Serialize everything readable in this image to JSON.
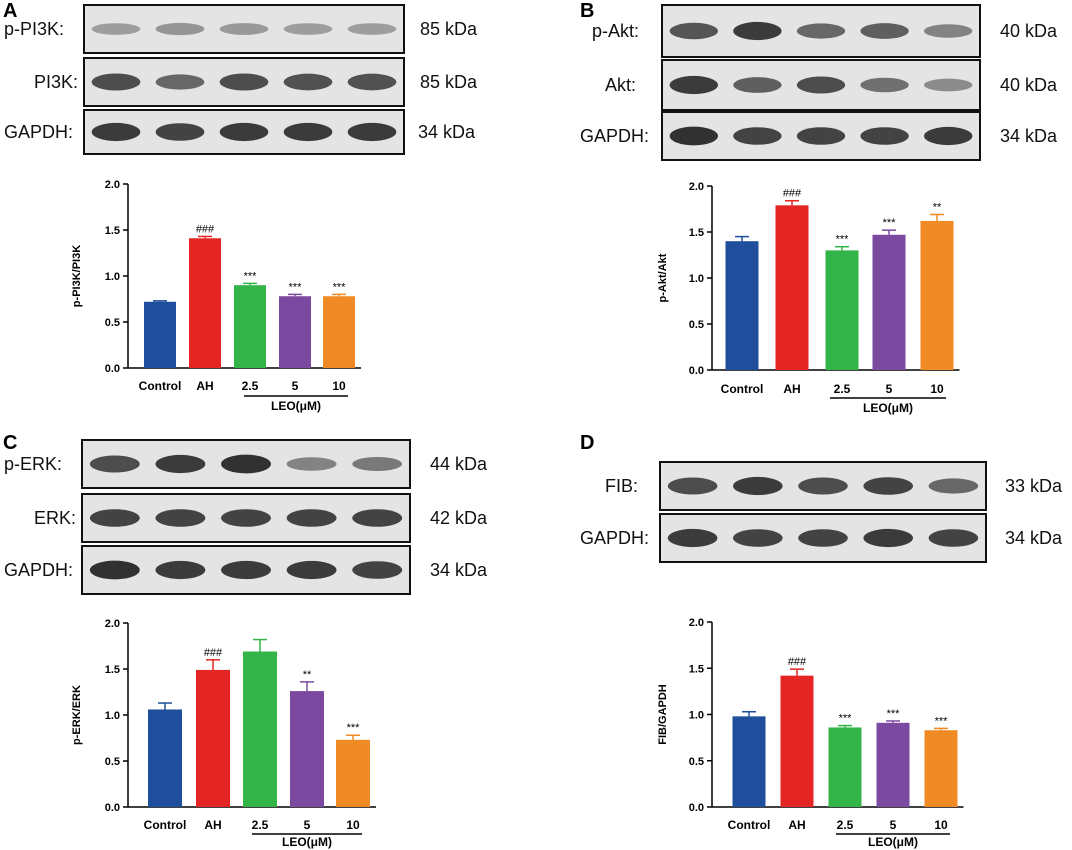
{
  "colors": {
    "control": "#1f4e9c",
    "ah": "#e32623",
    "leo_2_5": "#33b449",
    "leo_5": "#7b4aa0",
    "leo_10": "#f08a24"
  },
  "panels": [
    {
      "letter": "A",
      "blots": [
        {
          "label": "p-PI3K:",
          "kda": "85 kDa",
          "intensity": [
            0.3,
            0.35,
            0.32,
            0.3,
            0.3
          ]
        },
        {
          "label": "PI3K:",
          "kda": "85 kDa",
          "intensity": [
            0.75,
            0.6,
            0.75,
            0.72,
            0.72
          ]
        },
        {
          "label": "GAPDH:",
          "kda": "34 kDa",
          "intensity": [
            0.85,
            0.8,
            0.85,
            0.85,
            0.85
          ]
        }
      ]
    },
    {
      "letter": "B",
      "blots": [
        {
          "label": "p-Akt:",
          "kda": "40 kDa",
          "intensity": [
            0.7,
            0.85,
            0.6,
            0.65,
            0.45
          ]
        },
        {
          "label": "Akt:",
          "kda": "40 kDa",
          "intensity": [
            0.85,
            0.65,
            0.75,
            0.55,
            0.4
          ]
        },
        {
          "label": "GAPDH:",
          "kda": "34 kDa",
          "intensity": [
            0.9,
            0.8,
            0.8,
            0.8,
            0.85
          ]
        }
      ]
    },
    {
      "letter": "C",
      "blots": [
        {
          "label": "p-ERK:",
          "kda": "44 kDa",
          "intensity": [
            0.75,
            0.85,
            0.9,
            0.45,
            0.5
          ]
        },
        {
          "label": "ERK:",
          "kda": "42 kDa",
          "intensity": [
            0.8,
            0.8,
            0.8,
            0.8,
            0.8
          ]
        },
        {
          "label": "GAPDH:",
          "kda": "34 kDa",
          "intensity": [
            0.9,
            0.85,
            0.85,
            0.85,
            0.8
          ]
        }
      ]
    },
    {
      "letter": "D",
      "blots": [
        {
          "label": "FIB:",
          "kda": "33 kDa",
          "intensity": [
            0.75,
            0.85,
            0.75,
            0.8,
            0.6
          ]
        },
        {
          "label": "GAPDH:",
          "kda": "34 kDa",
          "intensity": [
            0.85,
            0.8,
            0.8,
            0.85,
            0.8
          ]
        }
      ]
    }
  ],
  "chart_data": [
    {
      "type": "bar",
      "panel": "A",
      "ylabel": "p-PI3K/PI3K",
      "ylim": [
        0,
        2.0
      ],
      "yticks": [
        "0.0",
        "0.5",
        "1.0",
        "1.5",
        "2.0"
      ],
      "categories": [
        "Control",
        "AH",
        "2.5",
        "5",
        "10"
      ],
      "group_label": "LEO(μM)",
      "values": [
        0.72,
        1.41,
        0.9,
        0.78,
        0.78
      ],
      "errors": [
        0.01,
        0.02,
        0.02,
        0.02,
        0.02
      ],
      "significance": [
        "",
        "###",
        "***",
        "***",
        "***"
      ]
    },
    {
      "type": "bar",
      "panel": "B",
      "ylabel": "p-Akt/Akt",
      "ylim": [
        0,
        2.0
      ],
      "yticks": [
        "0.0",
        "0.5",
        "1.0",
        "1.5",
        "2.0"
      ],
      "categories": [
        "Control",
        "AH",
        "2.5",
        "5",
        "10"
      ],
      "group_label": "LEO(μM)",
      "values": [
        1.4,
        1.79,
        1.3,
        1.47,
        1.62
      ],
      "errors": [
        0.05,
        0.05,
        0.04,
        0.05,
        0.07
      ],
      "significance": [
        "",
        "###",
        "***",
        "***",
        "**"
      ]
    },
    {
      "type": "bar",
      "panel": "C",
      "ylabel": "p-ERK/ERK",
      "ylim": [
        0,
        2.0
      ],
      "yticks": [
        "0.0",
        "0.5",
        "1.0",
        "1.5",
        "2.0"
      ],
      "categories": [
        "Control",
        "AH",
        "2.5",
        "5",
        "10"
      ],
      "group_label": "LEO(μM)",
      "values": [
        1.06,
        1.49,
        1.69,
        1.26,
        0.73
      ],
      "errors": [
        0.07,
        0.11,
        0.13,
        0.1,
        0.05
      ],
      "significance": [
        "",
        "###",
        "",
        "**",
        "***"
      ]
    },
    {
      "type": "bar",
      "panel": "D",
      "ylabel": "FIB/GAPDH",
      "ylim": [
        0,
        2.0
      ],
      "yticks": [
        "0.0",
        "0.5",
        "1.0",
        "1.5",
        "2.0"
      ],
      "categories": [
        "Control",
        "AH",
        "2.5",
        "5",
        "10"
      ],
      "group_label": "LEO(μM)",
      "values": [
        0.98,
        1.42,
        0.86,
        0.91,
        0.83
      ],
      "errors": [
        0.05,
        0.07,
        0.02,
        0.02,
        0.02
      ],
      "significance": [
        "",
        "###",
        "***",
        "***",
        "***"
      ]
    }
  ]
}
